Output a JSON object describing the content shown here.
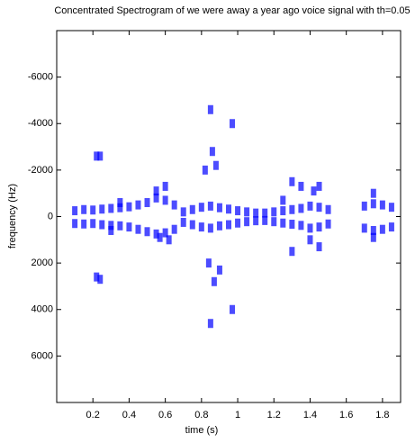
{
  "chart_data": {
    "type": "spectrogram",
    "title": "Concentrated Spectrogram of we were away a year ago voice signal with th=0.05",
    "x_label": "time (s)",
    "y_label": "frequency (Hz)",
    "color": "#0000ff",
    "xlim": [
      0,
      1.9
    ],
    "xticks": [
      0.2,
      0.4,
      0.6,
      0.8,
      1,
      1.2,
      1.4,
      1.6,
      1.8
    ],
    "ylim": [
      8000,
      -8000
    ],
    "yticks": [
      -6000,
      -4000,
      -2000,
      0,
      2000,
      4000,
      6000
    ],
    "x": [
      0.1,
      0.15,
      0.2,
      0.25,
      0.3,
      0.35,
      0.4,
      0.45,
      0.5,
      0.55,
      0.6,
      0.65,
      0.7,
      0.75,
      0.8,
      0.85,
      0.9,
      0.95,
      1.0,
      1.05,
      1.1,
      1.15,
      1.2,
      1.25,
      1.3,
      1.35,
      1.4,
      1.45,
      1.5,
      1.7,
      1.75,
      1.8,
      1.85,
      0.1,
      0.15,
      0.2,
      0.25,
      0.3,
      0.35,
      0.4,
      0.45,
      0.5,
      0.55,
      0.6,
      0.65,
      0.7,
      0.75,
      0.8,
      0.85,
      0.9,
      0.95,
      1.0,
      1.05,
      1.1,
      1.15,
      1.2,
      1.25,
      1.3,
      1.35,
      1.4,
      1.45,
      1.5,
      1.7,
      1.75,
      1.8,
      1.85,
      0.55,
      0.6,
      0.62,
      0.57,
      0.82,
      0.86,
      0.88,
      0.84,
      0.87,
      0.9,
      0.22,
      0.24,
      0.22,
      0.24,
      1.42,
      1.45,
      1.4,
      1.45,
      1.75,
      1.75,
      0.85,
      0.97,
      0.85,
      0.97,
      0.3,
      0.35,
      1.25,
      1.3,
      1.3,
      1.35
    ],
    "values": [
      -250,
      -300,
      -280,
      -320,
      -350,
      -380,
      -420,
      -500,
      -600,
      -800,
      -700,
      -500,
      -200,
      -300,
      -400,
      -450,
      -380,
      -320,
      -250,
      -200,
      -150,
      -150,
      -200,
      -250,
      -300,
      -350,
      -450,
      -400,
      -300,
      -450,
      -550,
      -500,
      -400,
      300,
      320,
      300,
      350,
      380,
      400,
      450,
      550,
      650,
      750,
      700,
      550,
      250,
      350,
      450,
      500,
      400,
      350,
      280,
      220,
      180,
      170,
      220,
      280,
      330,
      380,
      500,
      450,
      320,
      500,
      600,
      550,
      450,
      -1100,
      -1300,
      1000,
      900,
      -2000,
      -2800,
      -2200,
      2000,
      2800,
      2300,
      -2600,
      -2600,
      2600,
      2700,
      -1100,
      -1300,
      1000,
      1300,
      -1000,
      900,
      -4600,
      -4000,
      4600,
      4000,
      600,
      -600,
      -700,
      -1500,
      1500,
      -1300
    ]
  }
}
